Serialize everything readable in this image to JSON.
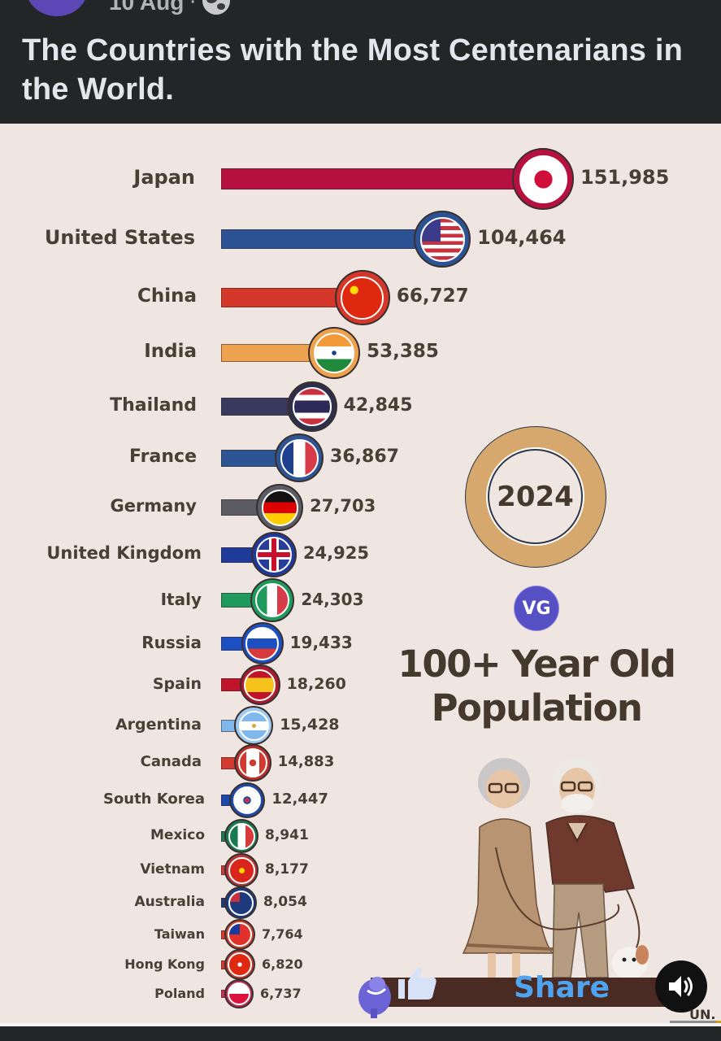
{
  "post": {
    "date": "10 Aug",
    "separator": "·",
    "privacy_icon": "globe-icon",
    "title": "The Countries with the Most Centenarians in the World."
  },
  "infographic": {
    "year": "2024",
    "logo": "VG",
    "subtitle_line1": "100+ Year Old",
    "subtitle_line2": "Population"
  },
  "overlay": {
    "share_label": "Share",
    "like_icon": "thumbs-up-icon",
    "sound_icon": "speaker-icon",
    "corner_text": "UN."
  },
  "chart_data": {
    "type": "bar",
    "orientation": "horizontal",
    "title": "100+ Year Old Population",
    "year": "2024",
    "xlabel": "",
    "ylabel": "",
    "grid": false,
    "categories": [
      "Japan",
      "United States",
      "China",
      "India",
      "Thailand",
      "France",
      "Germany",
      "United Kingdom",
      "Italy",
      "Russia",
      "Spain",
      "Argentina",
      "Canada",
      "South Korea",
      "Mexico",
      "Vietnam",
      "Australia",
      "Taiwan",
      "Hong Kong",
      "Poland"
    ],
    "values": [
      151985,
      104464,
      66727,
      53385,
      42845,
      36867,
      27703,
      24925,
      24303,
      19433,
      18260,
      15428,
      14883,
      12447,
      8941,
      8177,
      8054,
      7764,
      6820,
      6737
    ],
    "labels": [
      "151,985",
      "104,464",
      "66,727",
      "53,385",
      "42,845",
      "36,867",
      "27,703",
      "24,925",
      "24,303",
      "19,433",
      "18,260",
      "15,428",
      "14,883",
      "12,447",
      "8,941",
      "8,177",
      "8,054",
      "7,764",
      "6,820",
      "6,737"
    ],
    "colors": [
      "#b5103e",
      "#2b5293",
      "#d3382a",
      "#eca24e",
      "#373a5e",
      "#2d5493",
      "#5b5d63",
      "#1e3a9a",
      "#1f9a5d",
      "#1b4fc2",
      "#c1142a",
      "#7fb8ec",
      "#d23a30",
      "#1b4aa8",
      "#1b7a4f",
      "#c93a3a",
      "#1d3a7d",
      "#d63c2a",
      "#cf3b2e",
      "#c83155"
    ]
  }
}
